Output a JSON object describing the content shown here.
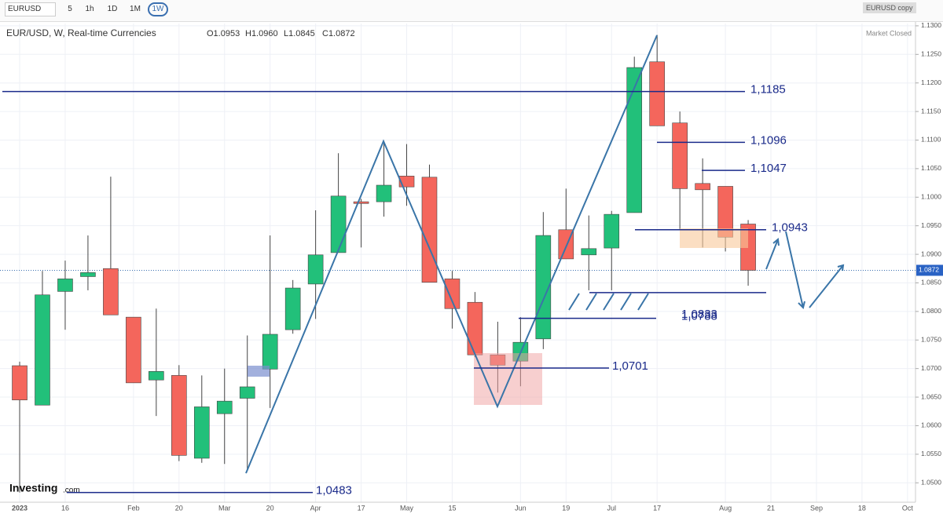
{
  "toolbar": {
    "symbol": "EURUSD",
    "intervals": [
      "5",
      "1h",
      "1D",
      "1M",
      "1W"
    ],
    "layout_name": "EURUSD copy"
  },
  "chart_data": {
    "type": "candlestick",
    "title": "EUR/USD, W, Real-time Currencies",
    "ohlc_legend": [
      "O1.0953",
      "H1.0960",
      "L1.0845",
      "C1.0872"
    ],
    "status": "Market Closed",
    "brand": "Investing",
    "brand_suffix": ".com",
    "up_color": "#22c07a",
    "down_color": "#f4665c",
    "line_color": "#1a2a8a",
    "x": [
      0,
      1,
      2,
      3,
      4,
      5,
      6,
      7,
      8,
      9,
      10,
      11,
      12,
      13,
      14,
      15,
      16,
      17,
      18,
      19,
      20,
      21,
      22,
      23,
      24,
      25,
      26,
      27,
      28,
      29,
      30,
      31,
      32
    ],
    "open": [
      1.0705,
      1.0636,
      1.0835,
      1.0861,
      1.0875,
      1.079,
      1.068,
      1.0688,
      1.0543,
      1.0621,
      1.0648,
      1.0699,
      1.0768,
      1.0848,
      1.0903,
      1.0992,
      1.0992,
      1.1037,
      1.1035,
      1.0857,
      1.0816,
      1.0724,
      1.0713,
      1.0752,
      1.0943,
      1.0899,
      1.0911,
      1.0973,
      1.1237,
      1.113,
      1.1024,
      1.1019,
      1.0953
    ],
    "high": [
      1.0712,
      1.0871,
      1.0889,
      1.0933,
      1.1036,
      1.079,
      1.0805,
      1.0706,
      1.0688,
      1.07,
      1.0758,
      1.0933,
      1.0855,
      1.0977,
      1.1077,
      1.0997,
      1.1095,
      1.1093,
      1.1057,
      1.0871,
      1.0834,
      1.0782,
      1.079,
      1.0974,
      1.1015,
      1.0968,
      1.0976,
      1.1246,
      1.1284,
      1.115,
      1.1068,
      1.1019,
      1.096
    ],
    "low": [
      1.0483,
      1.0636,
      1.0768,
      1.0837,
      1.0794,
      1.0675,
      1.0617,
      1.0538,
      1.0535,
      1.0533,
      1.0521,
      1.0631,
      1.0761,
      1.0787,
      1.0903,
      1.0912,
      1.0966,
      1.0985,
      1.0851,
      1.077,
      1.072,
      1.0658,
      1.0669,
      1.0734,
      1.0892,
      1.0837,
      1.0837,
      1.0973,
      1.1125,
      1.0944,
      1.0912,
      1.0905,
      1.0845
    ],
    "close": [
      1.0645,
      1.0829,
      1.0857,
      1.0868,
      1.0794,
      1.0675,
      1.0695,
      1.0548,
      1.0633,
      1.0643,
      1.0668,
      1.076,
      1.0841,
      1.0899,
      1.1002,
      1.0989,
      1.1021,
      1.1018,
      1.0851,
      1.0805,
      1.0724,
      1.0706,
      1.0746,
      1.0933,
      1.0892,
      1.091,
      1.097,
      1.1227,
      1.1125,
      1.1015,
      1.1013,
      1.093,
      1.0872
    ],
    "last_price": {
      "value": 1.0872,
      "label": "1.0872"
    },
    "levels": [
      {
        "value": 1.1185,
        "label": "1,1185"
      },
      {
        "value": 1.1096,
        "label": "1,1096"
      },
      {
        "value": 1.1047,
        "label": "1,1047"
      },
      {
        "value": 1.0943,
        "label": "1,0943"
      },
      {
        "value": 1.0833,
        "label": "1,0833"
      },
      {
        "value": 1.0788,
        "label": "1,0788"
      },
      {
        "value": 1.0701,
        "label": "1,0701"
      },
      {
        "value": 1.0483,
        "label": "1,0483"
      }
    ],
    "xlim": [
      -0.76,
      39.35
    ],
    "xticks": [
      {
        "value": 0,
        "label": "2023"
      },
      {
        "value": 2,
        "label": "16"
      },
      {
        "value": 5,
        "label": "Feb"
      },
      {
        "value": 7,
        "label": "20"
      },
      {
        "value": 9,
        "label": "Mar"
      },
      {
        "value": 11,
        "label": "20"
      },
      {
        "value": 13,
        "label": "Apr"
      },
      {
        "value": 15,
        "label": "17"
      },
      {
        "value": 17,
        "label": "May"
      },
      {
        "value": 19,
        "label": "15"
      },
      {
        "value": 22,
        "label": "Jun"
      },
      {
        "value": 24,
        "label": "19"
      },
      {
        "value": 26,
        "label": "Jul"
      },
      {
        "value": 28,
        "label": "17"
      },
      {
        "value": 31,
        "label": "Aug"
      },
      {
        "value": 33,
        "label": "21"
      },
      {
        "value": 35,
        "label": "Sep"
      },
      {
        "value": 37,
        "label": "18"
      },
      {
        "value": 39,
        "label": "Oct"
      }
    ],
    "ylim": [
      1.0466,
      1.1304
    ],
    "yticks": [
      {
        "value": 1.13,
        "label": "1.1300"
      },
      {
        "value": 1.125,
        "label": "1.1250"
      },
      {
        "value": 1.12,
        "label": "1.1200"
      },
      {
        "value": 1.115,
        "label": "1.1150"
      },
      {
        "value": 1.11,
        "label": "1.1100"
      },
      {
        "value": 1.105,
        "label": "1.1050"
      },
      {
        "value": 1.1,
        "label": "1.1000"
      },
      {
        "value": 1.095,
        "label": "1.0950"
      },
      {
        "value": 1.09,
        "label": "1.0900"
      },
      {
        "value": 1.085,
        "label": "1.0850"
      },
      {
        "value": 1.08,
        "label": "1.0800"
      },
      {
        "value": 1.075,
        "label": "1.0750"
      },
      {
        "value": 1.07,
        "label": "1.0700"
      },
      {
        "value": 1.065,
        "label": "1.0650"
      },
      {
        "value": 1.06,
        "label": "1.0600"
      },
      {
        "value": 1.055,
        "label": "1.0550"
      },
      {
        "value": 1.05,
        "label": "1.0500"
      }
    ],
    "grid": true
  }
}
